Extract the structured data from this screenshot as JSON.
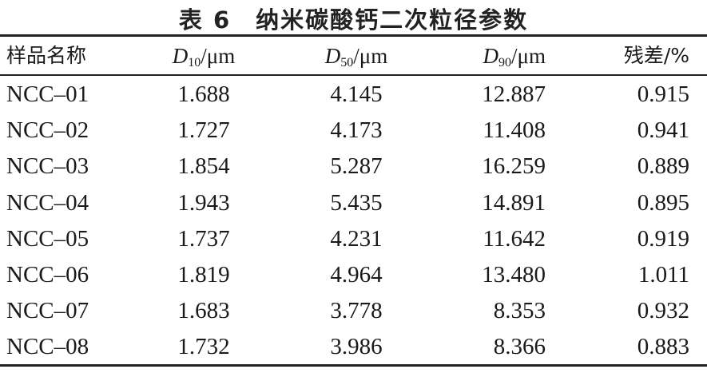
{
  "title": "表 6　纳米碳酸钙二次粒径参数",
  "table": {
    "header": [
      "样品名称",
      {
        "symbol": "D",
        "subscript": "10",
        "unit": "/μm"
      },
      {
        "symbol": "D",
        "subscript": "50",
        "unit": "/μm"
      },
      {
        "symbol": "D",
        "subscript": "90",
        "unit": "/μm"
      },
      "残差/%"
    ],
    "rows": [
      [
        "NCC–01",
        "1.688",
        "4.145",
        "12.887",
        "0.915"
      ],
      [
        "NCC–02",
        "1.727",
        "4.173",
        "11.408",
        "0.941"
      ],
      [
        "NCC–03",
        "1.854",
        "5.287",
        "16.259",
        "0.889"
      ],
      [
        "NCC–04",
        "1.943",
        "5.435",
        "14.891",
        "0.895"
      ],
      [
        "NCC–05",
        "1.737",
        "4.231",
        "11.642",
        "0.919"
      ],
      [
        "NCC–06",
        "1.819",
        "4.964",
        "13.480",
        "1.011"
      ],
      [
        "NCC–07",
        "1.683",
        "3.778",
        "8.353",
        "0.932"
      ],
      [
        "NCC–08",
        "1.732",
        "3.986",
        "8.366",
        "0.883"
      ]
    ]
  }
}
